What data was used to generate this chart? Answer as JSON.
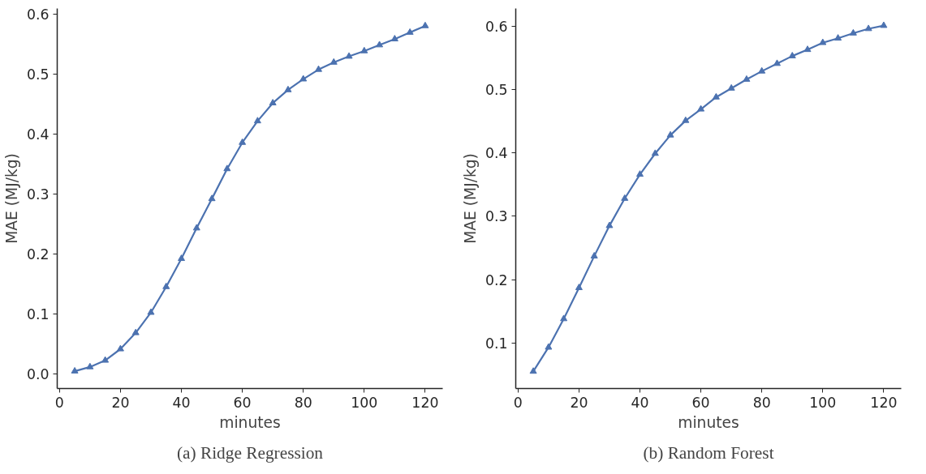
{
  "chart_data": [
    {
      "type": "line",
      "xlabel": "minutes",
      "ylabel": "MAE (MJ/kg)",
      "annotations": [
        "(a) Ridge Regression"
      ],
      "x": [
        5,
        10,
        15,
        20,
        25,
        30,
        35,
        40,
        45,
        50,
        55,
        60,
        65,
        70,
        75,
        80,
        85,
        90,
        95,
        100,
        105,
        110,
        115,
        120
      ],
      "series": [
        {
          "color": "#4c72b0",
          "values": [
            0.004,
            0.011,
            0.022,
            0.041,
            0.068,
            0.102,
            0.145,
            0.192,
            0.243,
            0.292,
            0.342,
            0.386,
            0.422,
            0.452,
            0.474,
            0.492,
            0.508,
            0.52,
            0.53,
            0.539,
            0.549,
            0.559,
            0.57,
            0.581
          ]
        }
      ],
      "xlim": [
        -0.75,
        125.75
      ],
      "ylim": [
        -0.025,
        0.61
      ],
      "xticks": [
        0,
        20,
        40,
        60,
        80,
        100,
        120
      ],
      "yticks": [
        {
          "value": 0,
          "label": "0.0"
        },
        0.1,
        0.2,
        0.3,
        0.4,
        0.5,
        0.6
      ],
      "grid": false,
      "marker": "triangle",
      "line_style": "solid"
    },
    {
      "type": "line",
      "xlabel": "minutes",
      "ylabel": "MAE (MJ/kg)",
      "annotations": [
        "(b) Random Forest"
      ],
      "x": [
        5,
        10,
        15,
        20,
        25,
        30,
        35,
        40,
        45,
        50,
        55,
        60,
        65,
        70,
        75,
        80,
        85,
        90,
        95,
        100,
        105,
        110,
        115,
        120
      ],
      "series": [
        {
          "color": "#4c72b0",
          "values": [
            0.055,
            0.093,
            0.138,
            0.187,
            0.237,
            0.285,
            0.328,
            0.366,
            0.399,
            0.428,
            0.451,
            0.469,
            0.488,
            0.502,
            0.516,
            0.529,
            0.541,
            0.553,
            0.563,
            0.574,
            0.581,
            0.589,
            0.596,
            0.601
          ]
        }
      ],
      "xlim": [
        -0.75,
        125.75
      ],
      "ylim": [
        0.028,
        0.628
      ],
      "xticks": [
        0,
        20,
        40,
        60,
        80,
        100,
        120
      ],
      "yticks": [
        0.1,
        0.2,
        0.3,
        0.4,
        0.5,
        0.6
      ],
      "grid": false,
      "marker": "triangle",
      "line_style": "solid"
    }
  ]
}
